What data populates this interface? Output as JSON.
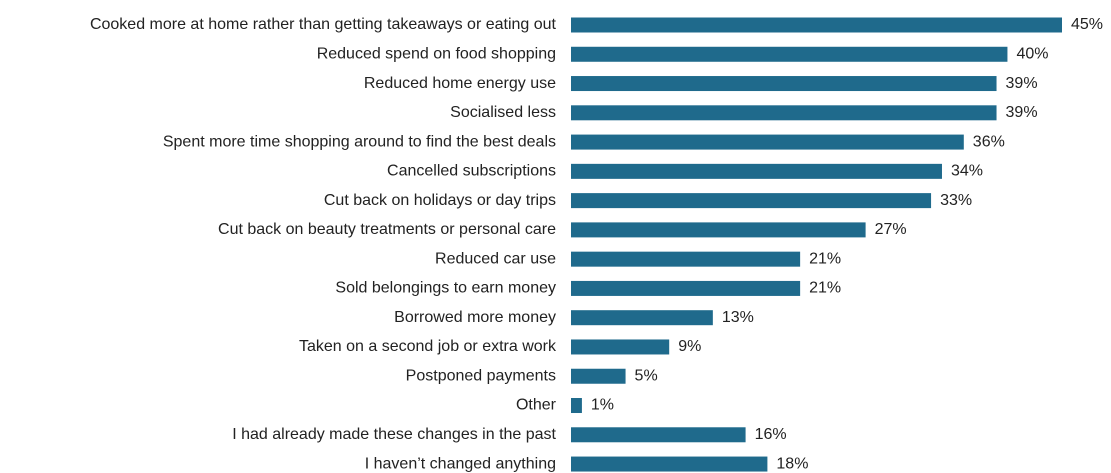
{
  "chart_data": {
    "type": "bar",
    "orientation": "horizontal",
    "color": "#1f6a8c",
    "categories": [
      "Cooked more at home rather than getting takeaways or eating out",
      "Reduced spend on food shopping",
      "Reduced home energy use",
      "Socialised less",
      "Spent more time shopping around to find the best deals",
      "Cancelled subscriptions",
      "Cut back on holidays or day trips",
      "Cut back on beauty treatments or personal care",
      "Reduced car use",
      "Sold belongings to earn money",
      "Borrowed more money",
      "Taken on a second job or extra work",
      "Postponed payments",
      "Other",
      "I had already made these changes in the past",
      "I haven’t changed anything"
    ],
    "values": [
      45,
      40,
      39,
      39,
      36,
      34,
      33,
      27,
      21,
      21,
      13,
      9,
      5,
      1,
      16,
      18
    ],
    "value_labels": [
      "45%",
      "40%",
      "39%",
      "39%",
      "36%",
      "34%",
      "33%",
      "27%",
      "21%",
      "21%",
      "13%",
      "9%",
      "5%",
      "1%",
      "16%",
      "18%"
    ]
  }
}
